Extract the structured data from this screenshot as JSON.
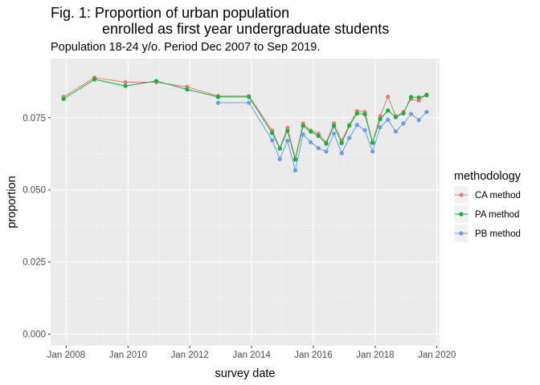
{
  "chart_data": {
    "type": "line",
    "title_line1": "Fig. 1: Proportion of urban population",
    "title_line2": "enrolled as first year undergraduate students",
    "subtitle": "Population 18-24 y/o. Period Dec 2007 to Sep 2019.",
    "xlabel": "survey date",
    "ylabel": "proportion",
    "xlim": [
      "2007-07-01",
      "2020-02-01"
    ],
    "ylim": [
      -0.004,
      0.0955
    ],
    "x_ticks": [
      "2008-01-01",
      "2010-01-01",
      "2012-01-01",
      "2014-01-01",
      "2016-01-01",
      "2018-01-01",
      "2020-01-01"
    ],
    "x_tick_labels": [
      "Jan 2008",
      "Jan 2010",
      "Jan 2012",
      "Jan 2014",
      "Jan 2016",
      "Jan 2018",
      "Jan 2020"
    ],
    "y_ticks": [
      0.0,
      0.025,
      0.05,
      0.075
    ],
    "y_tick_labels": [
      "0.000",
      "0.025",
      "0.050",
      "0.075"
    ],
    "grid": true,
    "legend": {
      "title": "methodology",
      "placement": "right"
    },
    "series": [
      {
        "name": "CA method",
        "color": "#F8766D",
        "points": [
          [
            "2007-12-01",
            0.0822
          ],
          [
            "2008-12-01",
            0.0889
          ],
          [
            "2009-12-01",
            0.0873
          ],
          [
            "2010-12-01",
            0.0873
          ],
          [
            "2011-12-01",
            0.0857
          ],
          [
            "2012-12-01",
            0.0825
          ],
          [
            "2013-12-01",
            0.0825
          ],
          [
            "2014-09-01",
            0.0706
          ],
          [
            "2014-12-01",
            0.0645
          ],
          [
            "2015-03-01",
            0.0715
          ],
          [
            "2015-06-01",
            0.0608
          ],
          [
            "2015-09-01",
            0.073
          ],
          [
            "2015-12-01",
            0.0705
          ],
          [
            "2016-03-01",
            0.0695
          ],
          [
            "2016-06-01",
            0.0665
          ],
          [
            "2016-09-01",
            0.073
          ],
          [
            "2016-12-01",
            0.067
          ],
          [
            "2017-03-01",
            0.0725
          ],
          [
            "2017-06-01",
            0.0773
          ],
          [
            "2017-09-01",
            0.077
          ],
          [
            "2017-12-01",
            0.0665
          ],
          [
            "2018-03-01",
            0.0755
          ],
          [
            "2018-06-01",
            0.0823
          ],
          [
            "2018-09-01",
            0.0755
          ],
          [
            "2018-12-01",
            0.077
          ],
          [
            "2019-03-01",
            0.0815
          ],
          [
            "2019-06-01",
            0.081
          ],
          [
            "2019-09-01",
            0.083
          ]
        ]
      },
      {
        "name": "PA method",
        "color": "#00BA38",
        "points": [
          [
            "2007-12-01",
            0.0815
          ],
          [
            "2008-12-01",
            0.0883
          ],
          [
            "2009-12-01",
            0.086
          ],
          [
            "2010-12-01",
            0.0877
          ],
          [
            "2011-12-01",
            0.0848
          ],
          [
            "2012-12-01",
            0.0822
          ],
          [
            "2013-12-01",
            0.0822
          ],
          [
            "2014-09-01",
            0.0697
          ],
          [
            "2014-12-01",
            0.0643
          ],
          [
            "2015-03-01",
            0.0705
          ],
          [
            "2015-06-01",
            0.0605
          ],
          [
            "2015-09-01",
            0.0722
          ],
          [
            "2015-12-01",
            0.0702
          ],
          [
            "2016-03-01",
            0.0687
          ],
          [
            "2016-06-01",
            0.066
          ],
          [
            "2016-09-01",
            0.0722
          ],
          [
            "2016-12-01",
            0.0662
          ],
          [
            "2017-03-01",
            0.0722
          ],
          [
            "2017-06-01",
            0.0765
          ],
          [
            "2017-09-01",
            0.0762
          ],
          [
            "2017-12-01",
            0.0663
          ],
          [
            "2018-03-01",
            0.0745
          ],
          [
            "2018-06-01",
            0.0775
          ],
          [
            "2018-09-01",
            0.0752
          ],
          [
            "2018-12-01",
            0.0765
          ],
          [
            "2019-03-01",
            0.0822
          ],
          [
            "2019-06-01",
            0.082
          ],
          [
            "2019-09-01",
            0.0828
          ]
        ]
      },
      {
        "name": "PB method",
        "color": "#619CFF",
        "points": [
          [
            "2012-12-01",
            0.0802
          ],
          [
            "2013-12-01",
            0.0802
          ],
          [
            "2014-09-01",
            0.0672
          ],
          [
            "2014-12-01",
            0.0607
          ],
          [
            "2015-03-01",
            0.067
          ],
          [
            "2015-06-01",
            0.0568
          ],
          [
            "2015-09-01",
            0.0692
          ],
          [
            "2015-12-01",
            0.0665
          ],
          [
            "2016-03-01",
            0.0645
          ],
          [
            "2016-06-01",
            0.0633
          ],
          [
            "2016-09-01",
            0.0695
          ],
          [
            "2016-12-01",
            0.0627
          ],
          [
            "2017-03-01",
            0.068
          ],
          [
            "2017-06-01",
            0.0725
          ],
          [
            "2017-09-01",
            0.0707
          ],
          [
            "2017-12-01",
            0.0633
          ],
          [
            "2018-03-01",
            0.0717
          ],
          [
            "2018-06-01",
            0.0743
          ],
          [
            "2018-09-01",
            0.0702
          ],
          [
            "2018-12-01",
            0.073
          ],
          [
            "2019-03-01",
            0.0763
          ],
          [
            "2019-06-01",
            0.0742
          ],
          [
            "2019-09-01",
            0.077
          ]
        ]
      }
    ]
  }
}
